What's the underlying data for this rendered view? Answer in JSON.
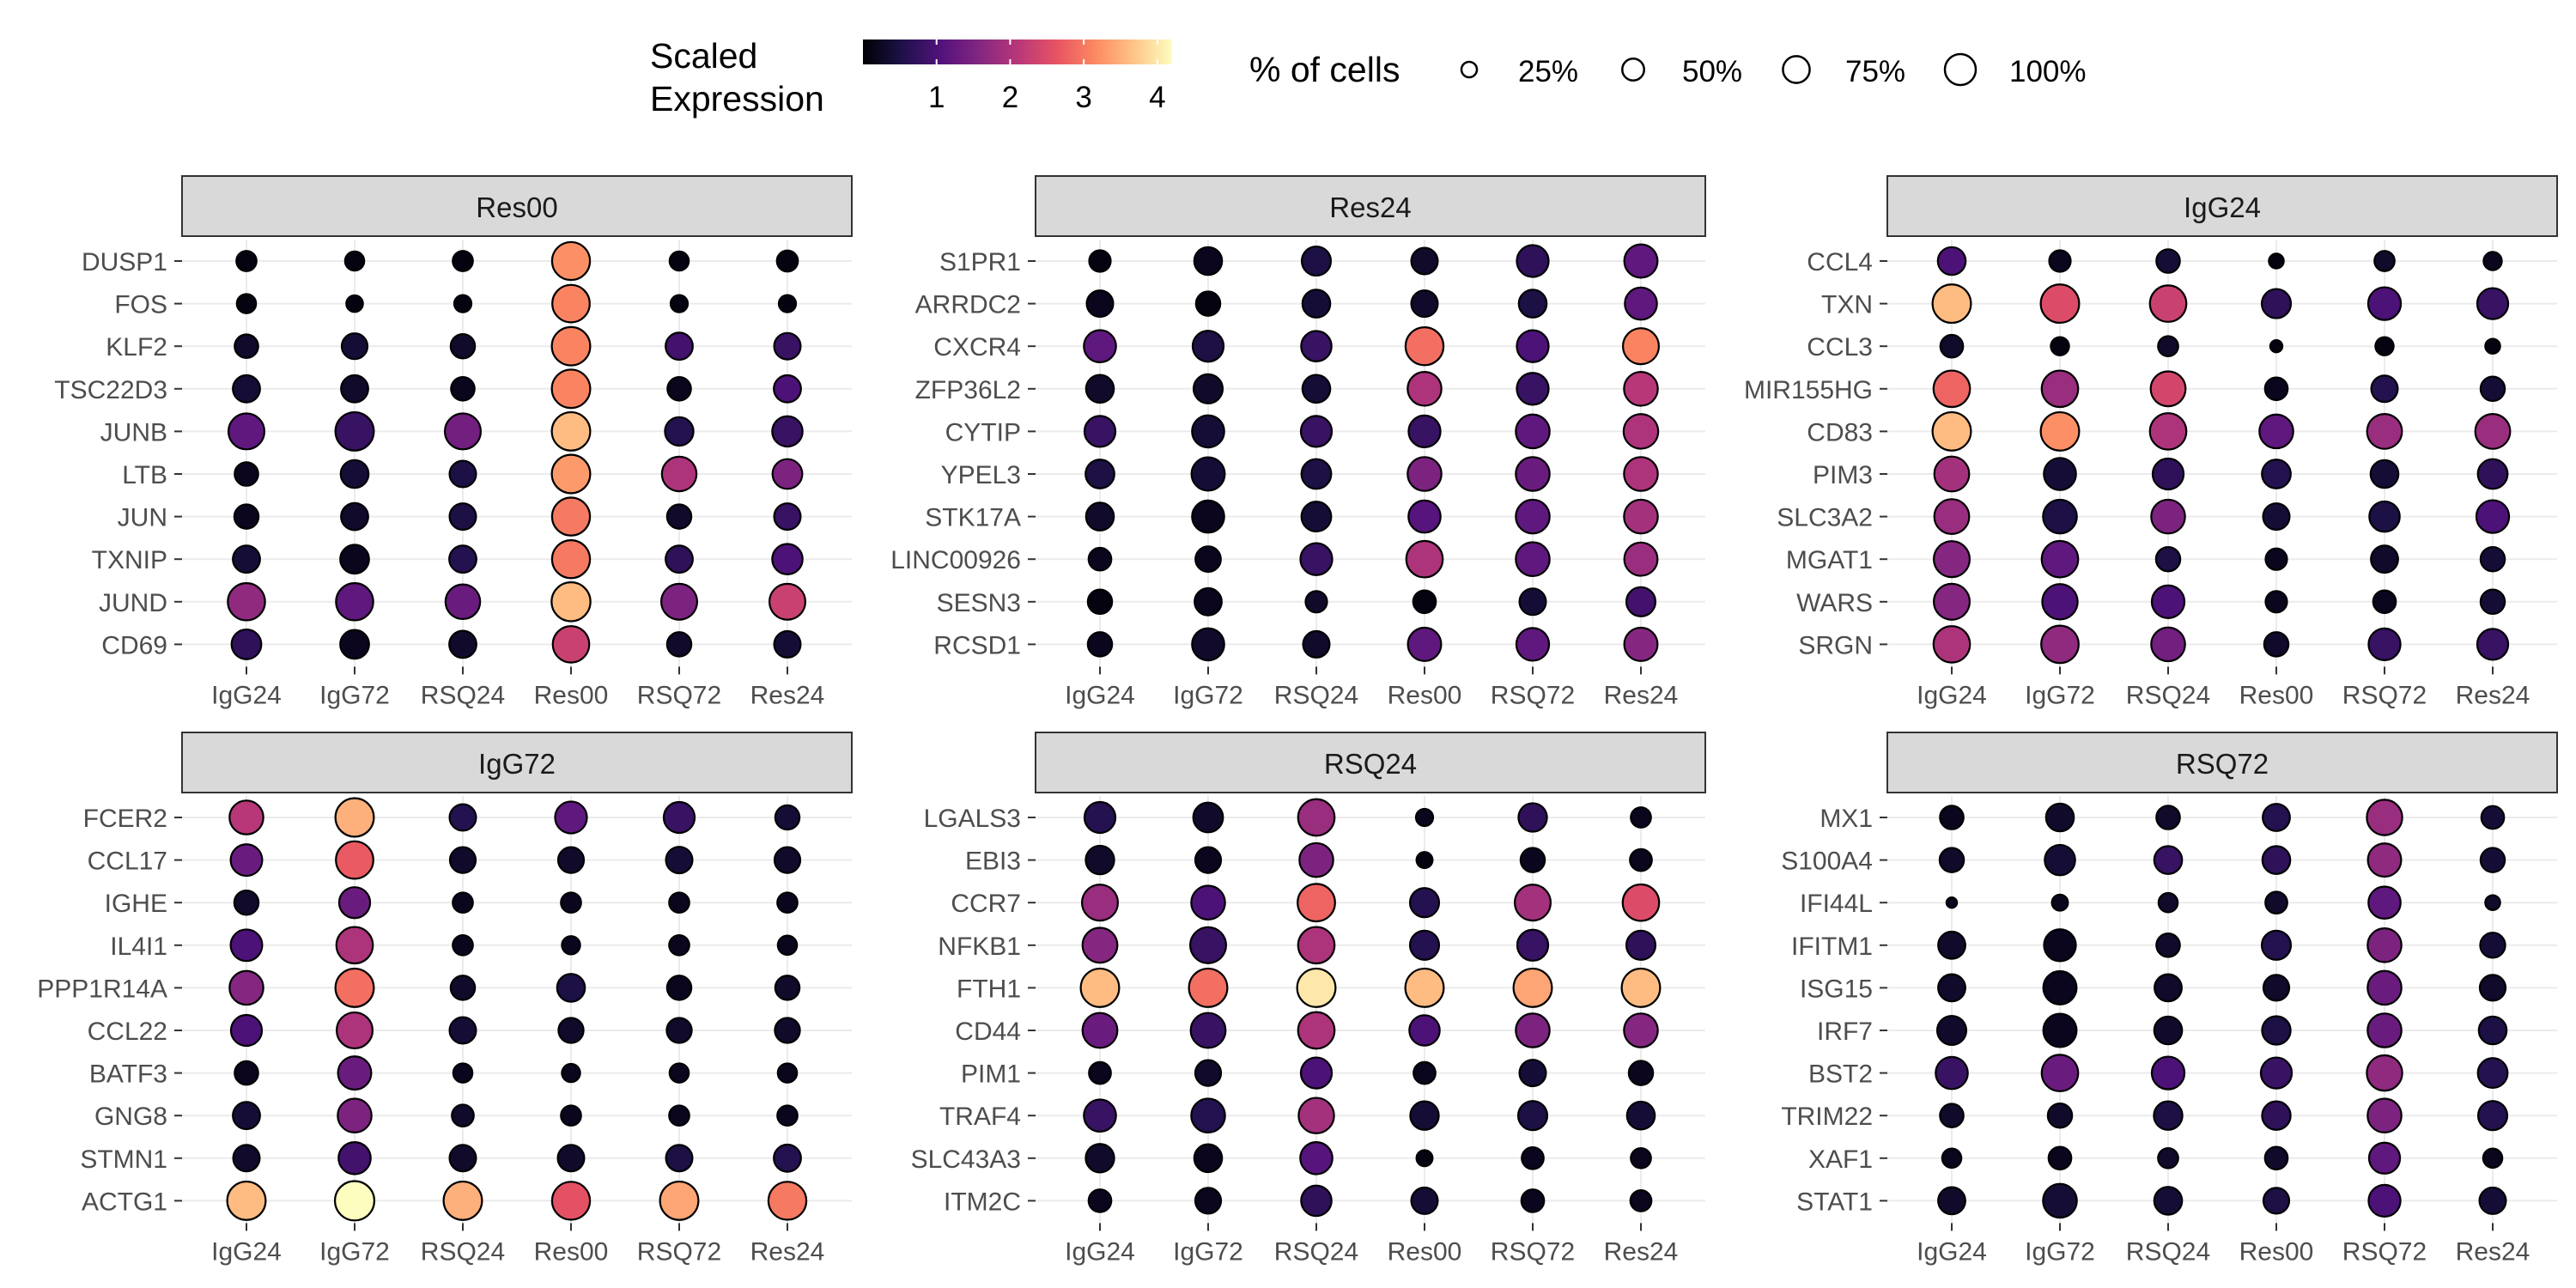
{
  "legend": {
    "color_title_line1": "Scaled",
    "color_title_line2": "Expression",
    "color_ticks": [
      "1",
      "2",
      "3",
      "4"
    ],
    "size_title": "% of cells",
    "size_labels": [
      "25%",
      "50%",
      "75%",
      "100%"
    ],
    "size_values": [
      25,
      50,
      75,
      100
    ]
  },
  "chart_data": {
    "type": "dot",
    "x_categories": [
      "IgG24",
      "IgG72",
      "RSQ24",
      "Res00",
      "RSQ72",
      "Res24"
    ],
    "color_scale": {
      "name": "magma",
      "domain": [
        0,
        4.2
      ],
      "colors": [
        "#000004",
        "#1d1147",
        "#51127c",
        "#832681",
        "#b73779",
        "#e75263",
        "#fc8961",
        "#fec488",
        "#fcfdbf"
      ]
    },
    "size_scale": {
      "domain": [
        0,
        100
      ]
    },
    "panels": [
      {
        "title": "Res00",
        "genes": [
          "DUSP1",
          "FOS",
          "KLF2",
          "TSC22D3",
          "JUNB",
          "LTB",
          "JUN",
          "TXNIP",
          "JUND",
          "CD69"
        ],
        "expression": [
          [
            0.1,
            0.1,
            0.1,
            3.2,
            0.1,
            0.1
          ],
          [
            0.1,
            0.1,
            0.1,
            3.1,
            0.1,
            0.1
          ],
          [
            0.3,
            0.4,
            0.3,
            3.1,
            0.9,
            0.8
          ],
          [
            0.4,
            0.3,
            0.2,
            3.1,
            0.2,
            1.0
          ],
          [
            1.2,
            0.8,
            1.4,
            3.6,
            0.6,
            0.8
          ],
          [
            0.2,
            0.4,
            0.5,
            3.3,
            2.0,
            1.5
          ],
          [
            0.2,
            0.3,
            0.5,
            3.0,
            0.3,
            0.8
          ],
          [
            0.4,
            0.2,
            0.6,
            3.0,
            0.7,
            1.0
          ],
          [
            1.7,
            1.2,
            1.3,
            3.6,
            1.5,
            2.3
          ],
          [
            0.7,
            0.2,
            0.3,
            2.3,
            0.3,
            0.4
          ]
        ],
        "pct": [
          [
            22,
            20,
            22,
            78,
            20,
            24
          ],
          [
            20,
            15,
            16,
            76,
            16,
            16
          ],
          [
            30,
            36,
            32,
            80,
            40,
            38
          ],
          [
            40,
            40,
            30,
            80,
            30,
            40
          ],
          [
            70,
            80,
            70,
            80,
            44,
            50
          ],
          [
            30,
            42,
            38,
            80,
            65,
            48
          ],
          [
            32,
            40,
            38,
            78,
            32,
            38
          ],
          [
            40,
            45,
            40,
            78,
            40,
            50
          ],
          [
            75,
            75,
            65,
            82,
            70,
            70
          ],
          [
            48,
            45,
            40,
            72,
            32,
            38
          ]
        ]
      },
      {
        "title": "Res24",
        "genes": [
          "S1PR1",
          "ARRDC2",
          "CXCR4",
          "ZFP36L2",
          "CYTIP",
          "YPEL3",
          "STK17A",
          "LINC00926",
          "SESN3",
          "RCSD1"
        ],
        "expression": [
          [
            0.1,
            0.2,
            0.5,
            0.3,
            0.7,
            1.2
          ],
          [
            0.2,
            0.1,
            0.4,
            0.3,
            0.5,
            1.2
          ],
          [
            1.2,
            0.5,
            0.8,
            2.9,
            1.0,
            3.1
          ],
          [
            0.3,
            0.3,
            0.4,
            2.0,
            0.8,
            2.1
          ],
          [
            0.8,
            0.4,
            0.8,
            0.8,
            1.2,
            2.0
          ],
          [
            0.5,
            0.4,
            0.5,
            1.5,
            1.3,
            2.0
          ],
          [
            0.3,
            0.2,
            0.4,
            1.1,
            1.2,
            1.9
          ],
          [
            0.2,
            0.2,
            0.8,
            2.0,
            1.2,
            1.8
          ],
          [
            0.1,
            0.2,
            0.3,
            0.1,
            0.4,
            0.9
          ],
          [
            0.2,
            0.3,
            0.3,
            1.2,
            1.2,
            1.6
          ]
        ],
        "pct": [
          [
            25,
            42,
            46,
            38,
            55,
            60
          ],
          [
            38,
            32,
            42,
            38,
            42,
            56
          ],
          [
            56,
            52,
            50,
            78,
            55,
            70
          ],
          [
            42,
            46,
            42,
            62,
            55,
            62
          ],
          [
            52,
            56,
            52,
            55,
            62,
            65
          ],
          [
            45,
            60,
            48,
            62,
            62,
            62
          ],
          [
            42,
            56,
            48,
            56,
            62,
            62
          ],
          [
            28,
            35,
            55,
            72,
            62,
            60
          ],
          [
            32,
            40,
            25,
            28,
            38,
            46
          ],
          [
            32,
            56,
            38,
            60,
            58,
            60
          ]
        ]
      },
      {
        "title": "IgG24",
        "genes": [
          "CCL4",
          "TXN",
          "CCL3",
          "MIR155HG",
          "CD83",
          "PIM3",
          "SLC3A2",
          "MGAT1",
          "WARS",
          "SRGN"
        ],
        "expression": [
          [
            1.0,
            0.2,
            0.4,
            0.1,
            0.3,
            0.2
          ],
          [
            3.6,
            2.5,
            2.3,
            0.7,
            1.0,
            0.8
          ],
          [
            0.3,
            0.1,
            0.3,
            0.1,
            0.1,
            0.1
          ],
          [
            2.8,
            1.8,
            2.4,
            0.2,
            0.6,
            0.4
          ],
          [
            3.6,
            3.2,
            2.0,
            1.2,
            1.8,
            1.8
          ],
          [
            1.9,
            0.4,
            0.7,
            0.6,
            0.4,
            0.7
          ],
          [
            1.8,
            0.5,
            1.5,
            0.4,
            0.5,
            1.0
          ],
          [
            1.6,
            1.2,
            0.5,
            0.2,
            0.3,
            0.4
          ],
          [
            1.6,
            1.0,
            1.0,
            0.2,
            0.2,
            0.4
          ],
          [
            2.0,
            1.7,
            1.4,
            0.3,
            0.8,
            0.8
          ]
        ],
        "pct": [
          [
            42,
            25,
            30,
            12,
            22,
            18
          ],
          [
            80,
            80,
            72,
            46,
            58,
            52
          ],
          [
            28,
            18,
            22,
            8,
            18,
            12
          ],
          [
            72,
            72,
            66,
            28,
            38,
            32
          ],
          [
            80,
            80,
            72,
            62,
            66,
            66
          ],
          [
            66,
            56,
            52,
            45,
            42,
            48
          ],
          [
            66,
            62,
            62,
            38,
            50,
            58
          ],
          [
            70,
            72,
            32,
            25,
            40,
            32
          ],
          [
            70,
            68,
            58,
            25,
            28,
            32
          ],
          [
            72,
            76,
            62,
            32,
            55,
            52
          ]
        ]
      },
      {
        "title": "IgG72",
        "genes": [
          "FCER2",
          "CCL17",
          "IGHE",
          "IL4I1",
          "PPP1R14A",
          "CCL22",
          "BATF3",
          "GNG8",
          "STMN1",
          "ACTG1"
        ],
        "expression": [
          [
            2.1,
            3.5,
            0.6,
            1.2,
            0.8,
            0.4
          ],
          [
            1.3,
            2.7,
            0.3,
            0.3,
            0.4,
            0.3
          ],
          [
            0.3,
            1.3,
            0.2,
            0.2,
            0.2,
            0.2
          ],
          [
            1.0,
            2.0,
            0.2,
            0.2,
            0.2,
            0.2
          ],
          [
            1.6,
            2.9,
            0.3,
            0.5,
            0.2,
            0.3
          ],
          [
            1.0,
            2.0,
            0.4,
            0.3,
            0.3,
            0.3
          ],
          [
            0.2,
            1.3,
            0.2,
            0.2,
            0.2,
            0.2
          ],
          [
            0.4,
            1.5,
            0.3,
            0.2,
            0.2,
            0.2
          ],
          [
            0.3,
            0.9,
            0.3,
            0.3,
            0.5,
            0.6
          ],
          [
            3.6,
            4.2,
            3.5,
            2.6,
            3.4,
            3.0
          ]
        ],
        "pct": [
          [
            62,
            80,
            38,
            55,
            52,
            32
          ],
          [
            54,
            76,
            36,
            36,
            38,
            36
          ],
          [
            32,
            52,
            22,
            22,
            22,
            22
          ],
          [
            54,
            72,
            22,
            18,
            22,
            20
          ],
          [
            62,
            80,
            32,
            42,
            32,
            32
          ],
          [
            52,
            70,
            38,
            34,
            34,
            34
          ],
          [
            30,
            60,
            20,
            18,
            20,
            20
          ],
          [
            40,
            62,
            26,
            22,
            22,
            22
          ],
          [
            38,
            56,
            38,
            38,
            38,
            40
          ],
          [
            80,
            84,
            80,
            78,
            80,
            78
          ]
        ]
      },
      {
        "title": "RSQ24",
        "genes": [
          "LGALS3",
          "EBI3",
          "CCR7",
          "NFKB1",
          "FTH1",
          "CD44",
          "PIM1",
          "TRAF4",
          "SLC43A3",
          "ITM2C"
        ],
        "expression": [
          [
            0.6,
            0.3,
            1.8,
            0.2,
            0.7,
            0.2
          ],
          [
            0.3,
            0.2,
            1.5,
            0.1,
            0.2,
            0.2
          ],
          [
            1.8,
            1.0,
            2.8,
            0.6,
            1.9,
            2.5
          ],
          [
            1.6,
            0.8,
            2.0,
            0.6,
            0.8,
            0.7
          ],
          [
            3.6,
            2.9,
            4.0,
            3.6,
            3.4,
            3.6
          ],
          [
            1.3,
            0.8,
            2.0,
            1.0,
            1.5,
            1.6
          ],
          [
            0.2,
            0.3,
            1.0,
            0.2,
            0.4,
            0.2
          ],
          [
            0.8,
            0.6,
            1.9,
            0.4,
            0.5,
            0.4
          ],
          [
            0.3,
            0.2,
            1.1,
            0.1,
            0.2,
            0.2
          ],
          [
            0.2,
            0.2,
            0.7,
            0.4,
            0.2,
            0.2
          ]
        ],
        "pct": [
          [
            52,
            48,
            72,
            16,
            44,
            22
          ],
          [
            44,
            36,
            62,
            14,
            32,
            26
          ],
          [
            70,
            62,
            76,
            46,
            70,
            72
          ],
          [
            66,
            70,
            72,
            46,
            52,
            46
          ],
          [
            80,
            80,
            80,
            80,
            80,
            80
          ],
          [
            66,
            66,
            72,
            50,
            62,
            62
          ],
          [
            26,
            36,
            52,
            26,
            38,
            32
          ],
          [
            56,
            62,
            68,
            44,
            46,
            42
          ],
          [
            44,
            42,
            56,
            14,
            26,
            22
          ],
          [
            28,
            36,
            50,
            38,
            28,
            24
          ]
        ]
      },
      {
        "title": "RSQ72",
        "genes": [
          "MX1",
          "S100A4",
          "IFI44L",
          "IFITM1",
          "ISG15",
          "IRF7",
          "BST2",
          "TRIM22",
          "XAF1",
          "STAT1"
        ],
        "expression": [
          [
            0.2,
            0.3,
            0.3,
            0.6,
            1.8,
            0.4
          ],
          [
            0.3,
            0.4,
            0.8,
            0.7,
            1.7,
            0.4
          ],
          [
            0.2,
            0.2,
            0.3,
            0.3,
            1.2,
            0.3
          ],
          [
            0.3,
            0.2,
            0.3,
            0.6,
            1.5,
            0.4
          ],
          [
            0.3,
            0.2,
            0.3,
            0.3,
            1.3,
            0.3
          ],
          [
            0.3,
            0.2,
            0.3,
            0.5,
            1.3,
            0.5
          ],
          [
            0.8,
            1.3,
            1.0,
            0.8,
            1.7,
            0.6
          ],
          [
            0.3,
            0.3,
            0.5,
            0.7,
            1.5,
            0.6
          ],
          [
            0.2,
            0.2,
            0.3,
            0.3,
            1.2,
            0.2
          ],
          [
            0.3,
            0.4,
            0.4,
            0.5,
            1.0,
            0.4
          ]
        ],
        "pct": [
          [
            30,
            42,
            30,
            40,
            68,
            28
          ],
          [
            32,
            50,
            42,
            42,
            60,
            32
          ],
          [
            6,
            14,
            20,
            26,
            56,
            12
          ],
          [
            40,
            55,
            30,
            46,
            62,
            34
          ],
          [
            40,
            60,
            40,
            36,
            62,
            36
          ],
          [
            46,
            60,
            42,
            44,
            62,
            42
          ],
          [
            56,
            72,
            58,
            52,
            68,
            48
          ],
          [
            30,
            32,
            44,
            44,
            62,
            46
          ],
          [
            20,
            28,
            22,
            28,
            52,
            20
          ],
          [
            40,
            62,
            42,
            36,
            55,
            38
          ]
        ]
      }
    ]
  }
}
